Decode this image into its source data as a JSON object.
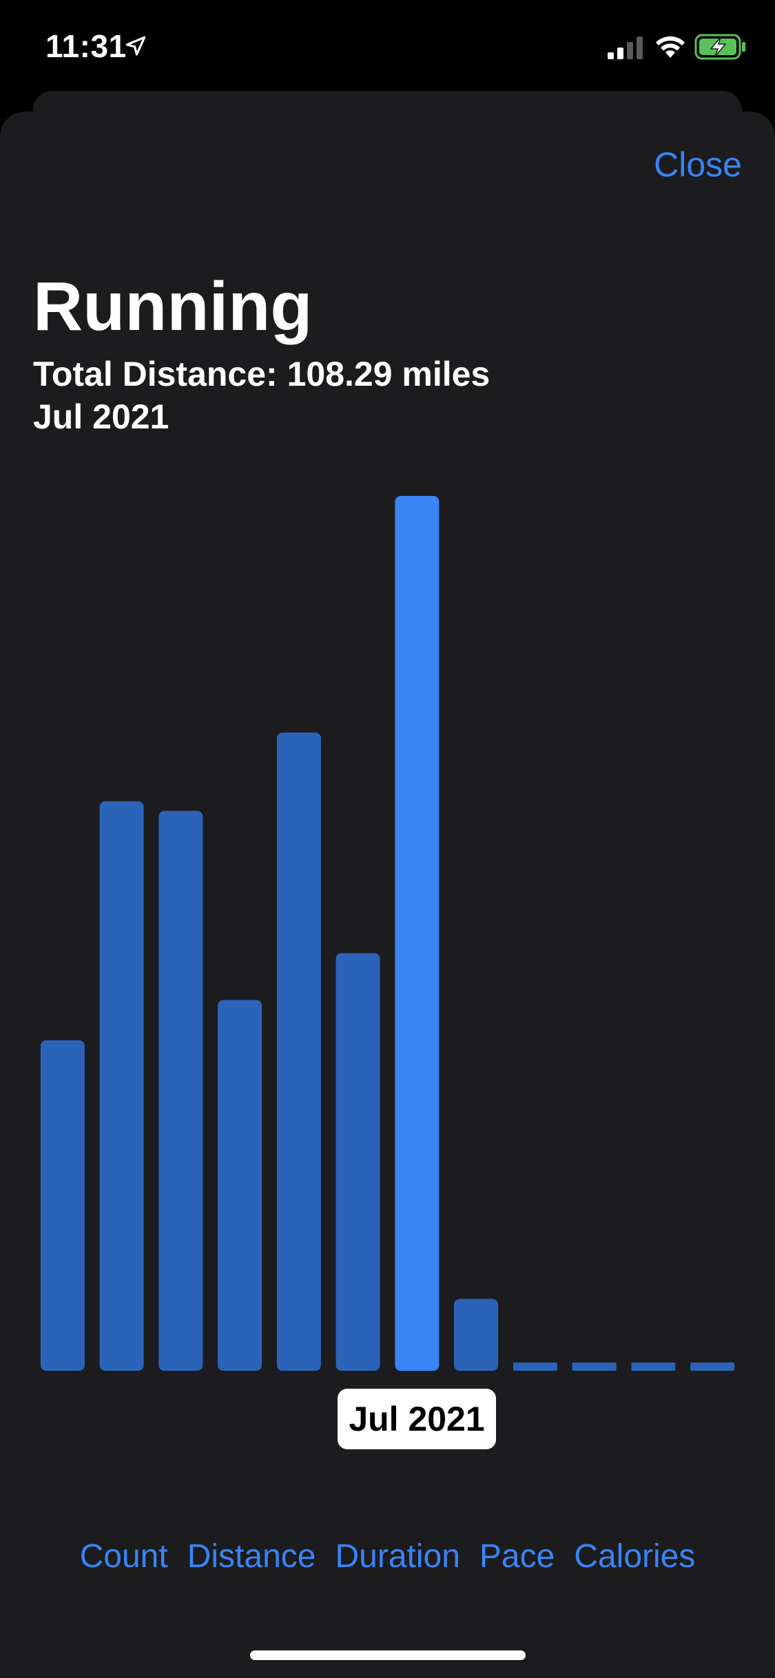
{
  "status_bar": {
    "time": "11:31"
  },
  "sheet": {
    "close_label": "Close",
    "title": "Running",
    "subtitle": "Total Distance: 108.29 miles",
    "period": "Jul 2021"
  },
  "chart_data": {
    "type": "bar",
    "categories": [
      "",
      "",
      "",
      "",
      "",
      "",
      "Jul 2021",
      "",
      "",
      "",
      "",
      ""
    ],
    "values": [
      40.9,
      70.5,
      69.3,
      45.9,
      79.0,
      51.7,
      108.29,
      8.9,
      1.0,
      1.0,
      1.0,
      1.0
    ],
    "selected_index": 6,
    "selected_label": "Jul 2021",
    "ylim": [
      0,
      108.29
    ],
    "colors": {
      "bar": "#2b63b9",
      "selected": "#3a84f6"
    },
    "grid": false
  },
  "metrics": [
    "Count",
    "Distance",
    "Duration",
    "Pace",
    "Calories"
  ],
  "colors": {
    "accent": "#3a84f6",
    "background": "#1c1c1e"
  }
}
